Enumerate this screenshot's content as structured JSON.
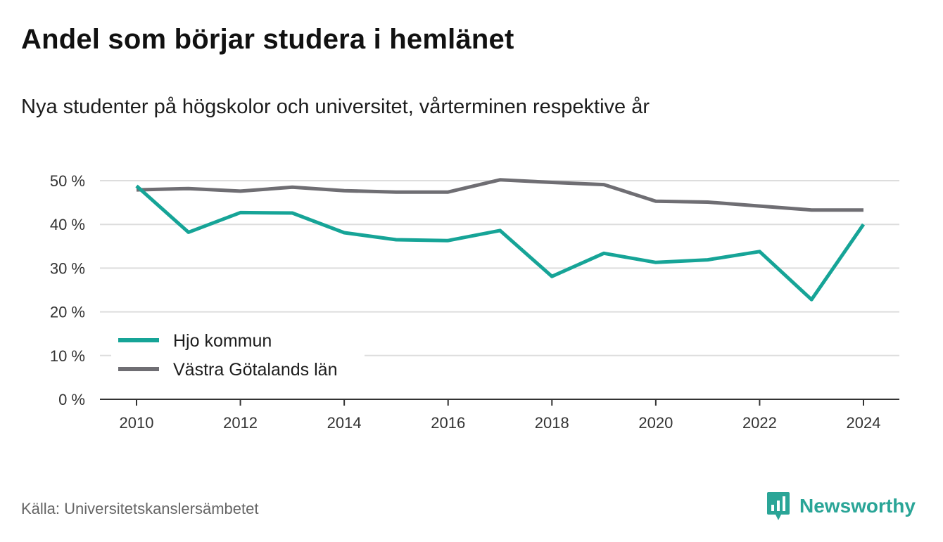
{
  "header": {
    "title": "Andel som börjar studera i hemlänet",
    "subtitle": "Nya studenter på högskolor och universitet, vårterminen respektive år"
  },
  "footer": {
    "source": "Källa: Universitetskanslersämbetet",
    "brand": "Newsworthy",
    "brand_icon": "newsworthy-logo-icon",
    "brand_color": "#2aa597"
  },
  "chart_data": {
    "type": "line",
    "title": "Andel som börjar studera i hemlänet",
    "subtitle": "Nya studenter på högskolor och universitet, vårterminen respektive år",
    "xlabel": "",
    "ylabel": "",
    "x": [
      2010,
      2011,
      2012,
      2013,
      2014,
      2015,
      2016,
      2017,
      2018,
      2019,
      2020,
      2021,
      2022,
      2023,
      2024
    ],
    "x_ticks": [
      "2010",
      "2012",
      "2014",
      "2016",
      "2018",
      "2020",
      "2022",
      "2024"
    ],
    "y_ticks": [
      "0 %",
      "10 %",
      "20 %",
      "30 %",
      "40 %",
      "50 %"
    ],
    "ylim": [
      0,
      50
    ],
    "grid": true,
    "legend_position": "bottom-left",
    "series": [
      {
        "name": "Hjo kommun",
        "color": "#16a497",
        "values": [
          48.8,
          38.2,
          42.7,
          42.6,
          38.1,
          36.5,
          36.3,
          38.6,
          28.1,
          33.4,
          31.3,
          31.9,
          33.8,
          22.8,
          40.0
        ]
      },
      {
        "name": "Västra Götalands län",
        "color": "#6f6e73",
        "values": [
          47.9,
          48.2,
          47.6,
          48.5,
          47.7,
          47.4,
          47.4,
          50.2,
          49.6,
          49.1,
          45.3,
          45.1,
          44.2,
          43.3,
          43.3
        ]
      }
    ]
  }
}
